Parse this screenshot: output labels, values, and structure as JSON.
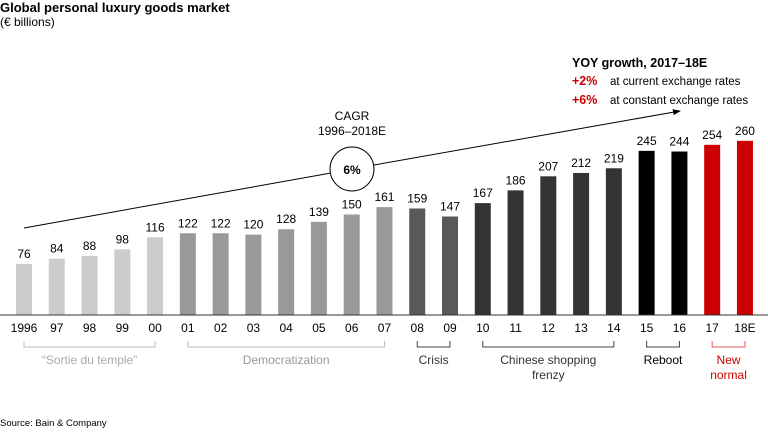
{
  "header": {
    "title": "Global personal luxury goods market",
    "subtitle": "(€ billions)"
  },
  "source": "Source: Bain & Company",
  "cagr": {
    "label_line1": "CAGR",
    "label_line2": "1996–2018E",
    "value": "6%"
  },
  "yoy": {
    "title": "YOY growth, 2017–18E",
    "rows": [
      {
        "value": "+2%",
        "text": "at current exchange rates"
      },
      {
        "value": "+6%",
        "text": "at constant exchange rates"
      }
    ]
  },
  "colors": {
    "sortie": "#cccccc",
    "democratization": "#999999",
    "crisis": "#595959",
    "chinese": "#333333",
    "reboot": "#000000",
    "new_normal": "#cc0000",
    "accent_red": "#cc0000"
  },
  "chart_data": {
    "type": "bar",
    "title": "Global personal luxury goods market",
    "ylabel": "€ billions",
    "xlabel": "",
    "categories": [
      "1996",
      "97",
      "98",
      "99",
      "00",
      "01",
      "02",
      "03",
      "04",
      "05",
      "06",
      "07",
      "08",
      "09",
      "10",
      "11",
      "12",
      "13",
      "14",
      "15",
      "16",
      "17",
      "18E"
    ],
    "values": [
      76,
      84,
      88,
      98,
      116,
      122,
      122,
      120,
      128,
      139,
      150,
      161,
      159,
      147,
      167,
      186,
      207,
      212,
      219,
      245,
      244,
      254,
      260
    ],
    "bar_groups": [
      "sortie",
      "sortie",
      "sortie",
      "sortie",
      "sortie",
      "democratization",
      "democratization",
      "democratization",
      "democratization",
      "democratization",
      "democratization",
      "democratization",
      "crisis",
      "crisis",
      "chinese",
      "chinese",
      "chinese",
      "chinese",
      "chinese",
      "reboot",
      "reboot",
      "new_normal",
      "new_normal"
    ],
    "periods": [
      {
        "key": "sortie",
        "label": [
          "“Sortie du temple”"
        ],
        "start": 0,
        "end": 4,
        "color": "#aaaaaa"
      },
      {
        "key": "democratization",
        "label": [
          "Democratization"
        ],
        "start": 5,
        "end": 11,
        "color": "#999999"
      },
      {
        "key": "crisis",
        "label": [
          "Crisis"
        ],
        "start": 12,
        "end": 13,
        "color": "#333333"
      },
      {
        "key": "chinese",
        "label": [
          "Chinese shopping",
          "frenzy"
        ],
        "start": 14,
        "end": 18,
        "color": "#333333"
      },
      {
        "key": "reboot",
        "label": [
          "Reboot"
        ],
        "start": 19,
        "end": 20,
        "color": "#000000"
      },
      {
        "key": "new_normal",
        "label": [
          "New",
          "normal"
        ],
        "start": 21,
        "end": 22,
        "color": "#cc0000"
      }
    ],
    "annotations": [
      "CAGR 1996–2018E: 6%",
      "YOY growth, 2017–18E: +2% at current exchange rates, +6% at constant exchange rates"
    ],
    "grid": false,
    "legend": "none"
  }
}
